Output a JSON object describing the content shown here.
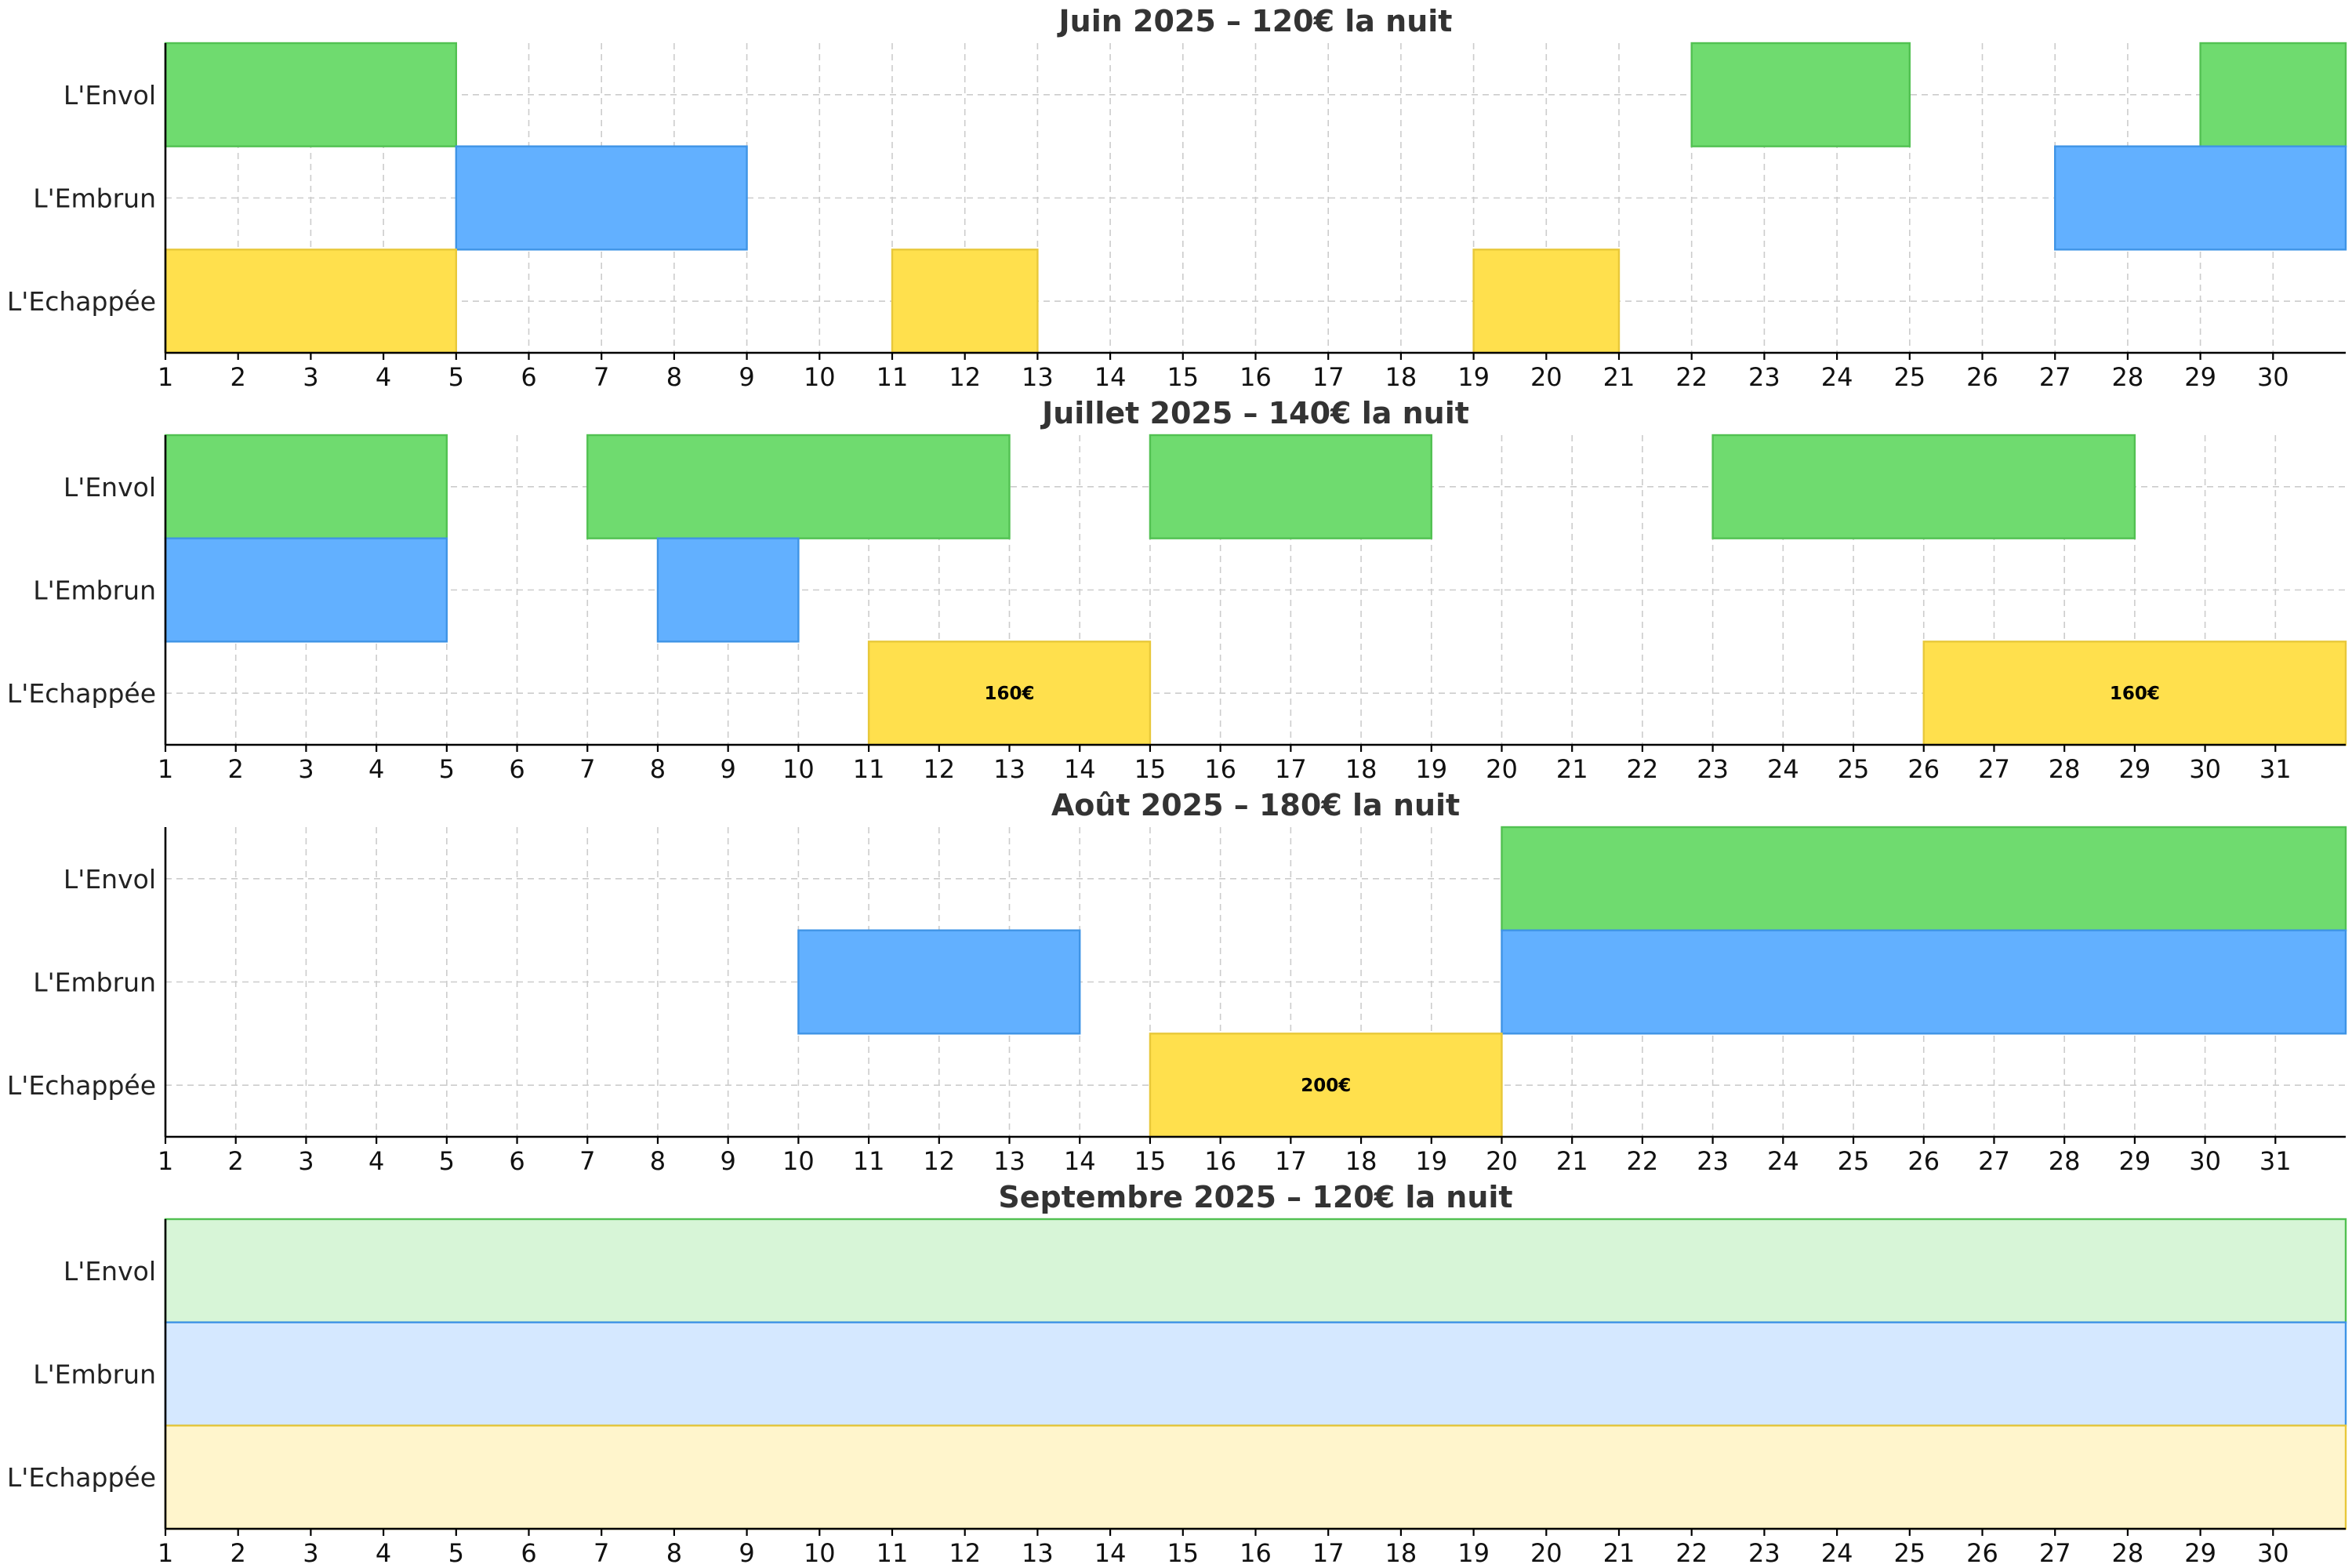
{
  "chart_data": [
    {
      "type": "gantt",
      "title": "Juin 2025 – 120€ la nuit",
      "days": 30,
      "rooms": [
        "L'Envol",
        "L'Embrun",
        "L'Echappée"
      ],
      "bookings": [
        {
          "room": "L'Envol",
          "start": 1,
          "end": 5,
          "label": ""
        },
        {
          "room": "L'Envol",
          "start": 22,
          "end": 25,
          "label": ""
        },
        {
          "room": "L'Envol",
          "start": 29,
          "end": 31,
          "label": ""
        },
        {
          "room": "L'Embrun",
          "start": 5,
          "end": 9,
          "label": ""
        },
        {
          "room": "L'Embrun",
          "start": 27,
          "end": 31,
          "label": ""
        },
        {
          "room": "L'Echappée",
          "start": 1,
          "end": 5,
          "label": ""
        },
        {
          "room": "L'Echappée",
          "start": 11,
          "end": 13,
          "label": ""
        },
        {
          "room": "L'Echappée",
          "start": 19,
          "end": 21,
          "label": ""
        }
      ]
    },
    {
      "type": "gantt",
      "title": "Juillet 2025 – 140€ la nuit",
      "days": 31,
      "rooms": [
        "L'Envol",
        "L'Embrun",
        "L'Echappée"
      ],
      "bookings": [
        {
          "room": "L'Envol",
          "start": 1,
          "end": 5,
          "label": ""
        },
        {
          "room": "L'Envol",
          "start": 7,
          "end": 13,
          "label": ""
        },
        {
          "room": "L'Envol",
          "start": 15,
          "end": 19,
          "label": ""
        },
        {
          "room": "L'Envol",
          "start": 23,
          "end": 29,
          "label": ""
        },
        {
          "room": "L'Embrun",
          "start": 1,
          "end": 5,
          "label": ""
        },
        {
          "room": "L'Embrun",
          "start": 8,
          "end": 10,
          "label": ""
        },
        {
          "room": "L'Echappée",
          "start": 11,
          "end": 15,
          "label": "160€"
        },
        {
          "room": "L'Echappée",
          "start": 26,
          "end": 32,
          "label": "160€"
        }
      ]
    },
    {
      "type": "gantt",
      "title": "Août 2025 – 180€ la nuit",
      "days": 31,
      "rooms": [
        "L'Envol",
        "L'Embrun",
        "L'Echappée"
      ],
      "bookings": [
        {
          "room": "L'Envol",
          "start": 20,
          "end": 32,
          "label": ""
        },
        {
          "room": "L'Embrun",
          "start": 10,
          "end": 14,
          "label": ""
        },
        {
          "room": "L'Embrun",
          "start": 20,
          "end": 32,
          "label": ""
        },
        {
          "room": "L'Echappée",
          "start": 15,
          "end": 20,
          "label": "200€"
        }
      ]
    },
    {
      "type": "gantt",
      "title": "Septembre 2025 – 120€ la nuit",
      "days": 30,
      "rooms": [
        "L'Envol",
        "L'Embrun",
        "L'Echappée"
      ],
      "bookings": [
        {
          "room": "L'Envol",
          "start": 1,
          "end": 31,
          "label": "",
          "faded": true
        },
        {
          "room": "L'Embrun",
          "start": 1,
          "end": 31,
          "label": "",
          "faded": true
        },
        {
          "room": "L'Echappée",
          "start": 1,
          "end": 31,
          "label": "",
          "faded": true
        }
      ]
    }
  ],
  "colors": {
    "L'Envol": {
      "fill": "#6fdb6f",
      "stroke": "#52c152",
      "faded_fill": "#d7f5d7"
    },
    "L'Embrun": {
      "fill": "#62b0ff",
      "stroke": "#3f94e6",
      "faded_fill": "#d5e8ff"
    },
    "L'Echappée": {
      "fill": "#ffe04d",
      "stroke": "#e8c83a",
      "faded_fill": "#fff5cc"
    }
  }
}
